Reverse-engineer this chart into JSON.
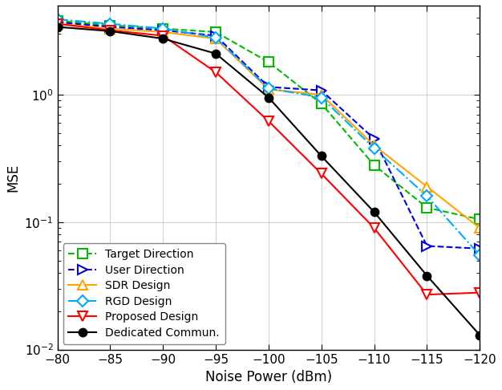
{
  "x": [
    -80,
    -85,
    -90,
    -95,
    -100,
    -105,
    -110,
    -115,
    -120
  ],
  "target_direction": [
    3.8,
    3.5,
    3.3,
    3.1,
    1.8,
    0.85,
    0.28,
    0.13,
    0.105
  ],
  "user_direction": [
    3.7,
    3.4,
    3.2,
    2.9,
    1.15,
    1.08,
    0.45,
    0.065,
    0.062
  ],
  "sdr_design": [
    3.6,
    3.3,
    3.1,
    2.75,
    1.1,
    1.0,
    0.4,
    0.19,
    0.09
  ],
  "rgd_design": [
    3.9,
    3.6,
    3.3,
    2.8,
    1.12,
    0.95,
    0.38,
    0.16,
    0.055
  ],
  "proposed_design": [
    3.6,
    3.2,
    2.9,
    1.5,
    0.62,
    0.24,
    0.09,
    0.027,
    0.028
  ],
  "dedicated_commun": [
    3.4,
    3.15,
    2.75,
    2.1,
    0.95,
    0.33,
    0.12,
    0.038,
    0.013
  ],
  "colors": {
    "target_direction": "#00BB00",
    "user_direction": "#0000DD",
    "sdr_design": "#FFA500",
    "rgd_design": "#00AAFF",
    "proposed_design": "#FF0000",
    "dedicated_commun": "#000000"
  },
  "xlabel": "Noise Power (dBm)",
  "ylabel": "MSE",
  "ylim_min": 0.01,
  "ylim_max": 5.0,
  "xlim_left": -80,
  "xlim_right": -120,
  "xticks": [
    -80,
    -85,
    -90,
    -95,
    -100,
    -105,
    -110,
    -115,
    -120
  ],
  "legend_labels": [
    "Target Direction",
    "User Direction",
    "SDR Design",
    "RGD Design",
    "Proposed Design",
    "Dedicated Commun."
  ]
}
